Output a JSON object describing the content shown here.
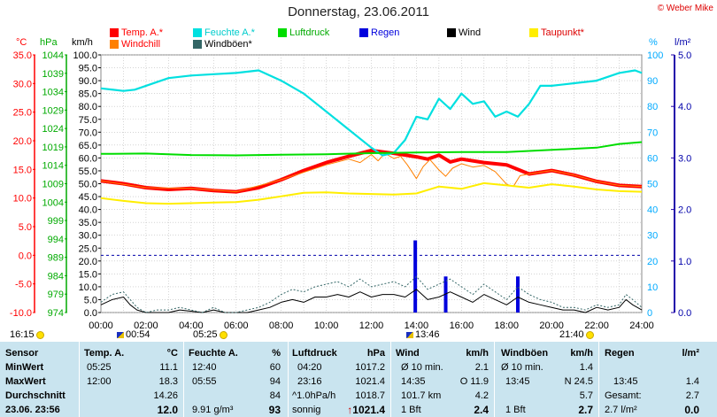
{
  "chart_data": {
    "type": "line",
    "title": "Donnerstag, 23.06.2011",
    "copyright": "© Weber Mike",
    "x_ticks": [
      "00:00",
      "02:00",
      "04:00",
      "06:00",
      "08:00",
      "10:00",
      "12:00",
      "14:00",
      "16:00",
      "18:00",
      "20:00",
      "22:00",
      "24:00"
    ],
    "x_range_hours": [
      0,
      24
    ],
    "axes": {
      "temp": {
        "unit": "°C",
        "range": [
          -10,
          35
        ],
        "ticks": [
          "35.0",
          "30.0",
          "25.0",
          "20.0",
          "15.0",
          "10.0",
          "5.0",
          "0.0",
          "-5.0",
          "-10.0"
        ],
        "color": "#ff0000"
      },
      "pressure": {
        "unit": "hPa",
        "range": [
          974,
          1044
        ],
        "ticks": [
          "1044",
          "1039",
          "1034",
          "1029",
          "1024",
          "1019",
          "1014",
          "1009",
          "1004",
          "999",
          "994",
          "989",
          "984",
          "979",
          "974"
        ],
        "color": "#00aa00"
      },
      "wind": {
        "unit": "km/h",
        "range": [
          0,
          100
        ],
        "ticks": [
          "100.0",
          "95.0",
          "90.0",
          "85.0",
          "80.0",
          "75.0",
          "70.0",
          "65.0",
          "60.0",
          "55.0",
          "50.0",
          "45.0",
          "40.0",
          "35.0",
          "30.0",
          "25.0",
          "20.0",
          "15.0",
          "10.0",
          "5.0",
          "0.0"
        ],
        "color": "#000000"
      },
      "humidity": {
        "unit": "%",
        "range": [
          0,
          100
        ],
        "ticks": [
          "100",
          "90",
          "80",
          "70",
          "60",
          "50",
          "40",
          "30",
          "20",
          "10",
          "0"
        ],
        "color": "#00aaff"
      },
      "rain": {
        "unit": "l/m²",
        "range": [
          0,
          5
        ],
        "ticks": [
          "5.0",
          "4.0",
          "3.0",
          "2.0",
          "1.0",
          "0.0"
        ],
        "color": "#0000aa"
      }
    },
    "legend": [
      {
        "name": "Temp. A.*",
        "color": "#ff0000",
        "text_color": "#ff0000"
      },
      {
        "name": "Feuchte A.*",
        "color": "#00e0e0",
        "text_color": "#00cccc"
      },
      {
        "name": "Luftdruck",
        "color": "#00dd00",
        "text_color": "#00aa00"
      },
      {
        "name": "Regen",
        "color": "#0000dd",
        "text_color": "#0000dd"
      },
      {
        "name": "Wind",
        "color": "#000000",
        "text_color": "#000000"
      },
      {
        "name": "Taupunkt*",
        "color": "#ffee00",
        "text_color": "#dd0000"
      },
      {
        "name": "Windchill",
        "color": "#ff8000",
        "text_color": "#ff0000"
      },
      {
        "name": "Windböen*",
        "color": "#336666",
        "text_color": "#000000"
      }
    ],
    "series": [
      {
        "name": "Temp. A.*",
        "axis": "temp",
        "x": [
          0,
          1,
          2,
          3,
          4,
          5,
          6,
          7,
          8,
          9,
          10,
          11,
          12,
          13,
          14,
          14.5,
          15,
          15.5,
          16,
          17,
          18,
          19,
          20,
          21,
          22,
          23,
          24
        ],
        "values": [
          13,
          12.5,
          11.8,
          11.5,
          11.7,
          11.3,
          11.1,
          11.8,
          13.2,
          14.8,
          16.2,
          17.3,
          18.3,
          17.8,
          17.2,
          16.8,
          17.5,
          16.3,
          16.8,
          16.2,
          15.8,
          14.2,
          14.8,
          14.0,
          12.9,
          12.2,
          12.0
        ]
      },
      {
        "name": "Windchill",
        "axis": "temp",
        "x": [
          0,
          2,
          4,
          6,
          8,
          10,
          11,
          11.5,
          12,
          12.3,
          12.6,
          13,
          13.3,
          13.6,
          14,
          14.3,
          14.6,
          15,
          15.3,
          15.6,
          16,
          16.5,
          17,
          17.5,
          18,
          18.3,
          18.6,
          19,
          20,
          21,
          22,
          23,
          24
        ],
        "values": [
          13,
          11.8,
          11.7,
          11.1,
          13.2,
          15.8,
          16.8,
          16.2,
          17.6,
          16.5,
          17.8,
          16.9,
          17.3,
          15.8,
          13.4,
          15.5,
          16.7,
          14.9,
          13.8,
          15.2,
          16.0,
          15.4,
          15.7,
          14.6,
          12.4,
          12.0,
          13.9,
          14.2,
          14.8,
          14.0,
          12.9,
          12.2,
          12.0
        ]
      },
      {
        "name": "Taupunkt*",
        "axis": "temp",
        "x": [
          0,
          1,
          2,
          3,
          4,
          5,
          6,
          7,
          8,
          9,
          10,
          11,
          12,
          13,
          14,
          15,
          16,
          17,
          18,
          19,
          20,
          21,
          22,
          23,
          24
        ],
        "values": [
          10.0,
          9.5,
          9.1,
          9.0,
          9.1,
          9.2,
          9.3,
          9.7,
          10.3,
          10.9,
          11.0,
          10.8,
          10.7,
          10.6,
          10.8,
          12.0,
          11.6,
          12.6,
          12.2,
          11.8,
          12.4,
          12.0,
          11.5,
          11.2,
          11.1
        ]
      },
      {
        "name": "Feuchte A.*",
        "axis": "humidity",
        "x": [
          0,
          1,
          1.5,
          2,
          3,
          4,
          5,
          6,
          7,
          8,
          9,
          10,
          11,
          12,
          12.5,
          13,
          13.5,
          14,
          14.5,
          15,
          15.5,
          16,
          16.5,
          17,
          17.5,
          18,
          18.5,
          19,
          19.5,
          20,
          21,
          22,
          23,
          23.7,
          24
        ],
        "values": [
          87,
          86,
          86.5,
          88,
          91,
          92,
          92.5,
          93,
          94,
          90,
          85,
          78,
          71,
          64,
          61,
          62,
          67,
          76,
          75,
          83,
          79,
          85,
          81,
          82,
          76,
          78,
          76,
          81,
          88,
          88,
          89,
          90,
          93,
          94,
          93
        ]
      },
      {
        "name": "Luftdruck",
        "axis": "pressure",
        "x": [
          0,
          2,
          4,
          6,
          8,
          10,
          12,
          14,
          16,
          18,
          20,
          22,
          23,
          24
        ],
        "values": [
          1017.1,
          1017.2,
          1016.8,
          1016.7,
          1016.9,
          1017.0,
          1017.3,
          1017.5,
          1017.6,
          1017.6,
          1018.2,
          1018.8,
          1019.8,
          1020.3
        ]
      },
      {
        "name": "Regen",
        "axis": "rain",
        "type": "bar",
        "x": [
          13.95,
          15.3,
          18.5
        ],
        "values": [
          1.4,
          0.7,
          0.7
        ]
      },
      {
        "name": "Wind",
        "axis": "wind",
        "x": [
          0,
          0.5,
          1,
          1.3,
          1.6,
          2,
          2.5,
          3,
          3.5,
          4,
          4.5,
          5,
          5.5,
          6,
          6.5,
          7,
          7.5,
          8,
          8.5,
          9,
          9.5,
          10,
          10.5,
          11,
          11.5,
          12,
          12.5,
          13,
          13.5,
          14,
          14.5,
          15,
          15.5,
          16,
          16.5,
          17,
          17.5,
          18,
          18.5,
          19,
          19.5,
          20,
          20.5,
          21,
          21.5,
          22,
          22.5,
          23,
          23.3,
          23.6,
          24
        ],
        "values": [
          3,
          5,
          6,
          3,
          1,
          0,
          0,
          0,
          1,
          0.5,
          0,
          1,
          0,
          0,
          0,
          1,
          2,
          4,
          5,
          4,
          6,
          6,
          7,
          6,
          8,
          6,
          7,
          7,
          6,
          9,
          5,
          6,
          8,
          6,
          4,
          7,
          5,
          3,
          6,
          4,
          3,
          2,
          1,
          1,
          0,
          2,
          1,
          2,
          5,
          3,
          1
        ]
      },
      {
        "name": "Windböen*",
        "axis": "wind",
        "x": [
          0,
          0.5,
          1,
          1.3,
          1.6,
          2,
          2.5,
          3,
          3.5,
          4,
          4.5,
          5,
          5.5,
          6,
          6.5,
          7,
          7.5,
          8,
          8.5,
          9,
          9.5,
          10,
          10.5,
          11,
          11.5,
          12,
          12.5,
          13,
          13.5,
          14,
          14.5,
          15,
          15.5,
          16,
          16.5,
          17,
          17.5,
          18,
          18.5,
          19,
          19.5,
          20,
          20.5,
          21,
          21.5,
          22,
          22.5,
          23,
          23.3,
          23.6,
          24
        ],
        "values": [
          4,
          7,
          8,
          5,
          2,
          0,
          1,
          1,
          2,
          1,
          0,
          2,
          0,
          0,
          1,
          2,
          4,
          7,
          9,
          8,
          10,
          11,
          12,
          10,
          13,
          10,
          11,
          12,
          10,
          14,
          9,
          11,
          13,
          10,
          7,
          11,
          8,
          5,
          10,
          7,
          5,
          4,
          2,
          2,
          1,
          3,
          2,
          3,
          7,
          5,
          2
        ]
      }
    ],
    "ref_lines": [
      {
        "axis": "temp",
        "value": 0,
        "color": "#0000aa",
        "style": "dashed"
      }
    ],
    "time_markers": {
      "sunrise": "05:25",
      "sunset": "21:40",
      "moon_left": "16:15",
      "flag1": "00:54",
      "flag2": "13:46"
    }
  },
  "stats": {
    "sensor": {
      "header": "Sensor",
      "rows": [
        "MinWert",
        "MaxWert",
        "Durchschnitt"
      ],
      "footer": "23.06. 23:56"
    },
    "temp": {
      "header": "Temp. A.",
      "unit": "°C",
      "min_time": "05:25",
      "min": "11.1",
      "max_time": "12:00",
      "max": "18.3",
      "avg": "14.26",
      "current": "12.0"
    },
    "humidity": {
      "header": "Feuchte A.",
      "unit": "%",
      "min_time": "12:40",
      "min": "60",
      "max_time": "05:55",
      "max": "94",
      "avg": "84",
      "extra": "9.91 g/m³",
      "current": "93"
    },
    "pressure": {
      "header": "Luftdruck",
      "unit": "hPa",
      "min_time": "04:20",
      "min": "1017.2",
      "max_time": "23:16",
      "max": "1021.4",
      "avg_label": "^1.0hPa/h",
      "avg": "1018.7",
      "extra": "sonnig",
      "current": "1021.4",
      "arrow": "↑"
    },
    "wind": {
      "header": "Wind",
      "unit": "km/h",
      "r1_label": "Ø 10 min.",
      "r1_val": "2.1",
      "r2_time": "14:35",
      "r2_dir": "O 11.9",
      "r3_label": "101.7 km",
      "r3_val": "4.2",
      "r4_label": "1 Bft",
      "current": "2.4"
    },
    "gust": {
      "header": "Windböen",
      "unit": "km/h",
      "r1_label": "Ø 10 min.",
      "r1_val": "1.4",
      "r2_time": "13:45",
      "r2_dir": "N 24.5",
      "r3_val": "5.7",
      "r4_label": "1 Bft",
      "current": "2.7"
    },
    "rain": {
      "header": "Regen",
      "unit": "l/m²",
      "r2_time": "13:45",
      "r2_val": "1.4",
      "r3_label": "Gesamt:",
      "r3_val": "2.7",
      "r4_label": "2.7 l/m²",
      "current": "0.0"
    }
  }
}
